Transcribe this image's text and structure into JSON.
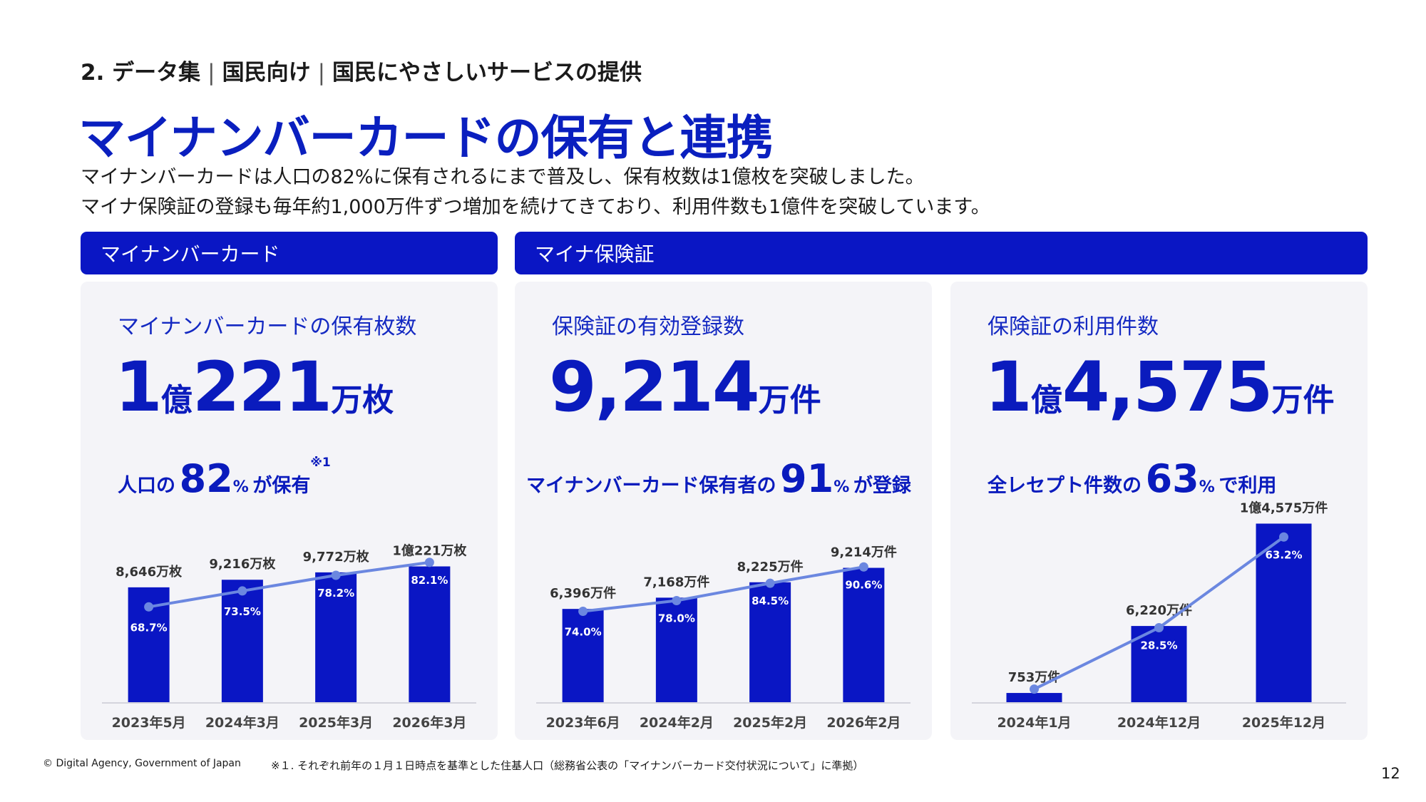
{
  "breadcrumb": {
    "part1": "2. データ集",
    "part2": "国民向け",
    "part3": "国民にやさしいサービスの提供",
    "separator": "|"
  },
  "title": "マイナンバーカードの保有と連携",
  "lead": {
    "line1": "マイナンバーカードは人口の82%に保有されるにまで普及し、保有枚数は1億枚を突破しました。",
    "line2": "マイナ保険証の登録も毎年約1,000万件ずつ増加を続けてきており、利用件数も1億件を突破しています。"
  },
  "sections": {
    "card": "マイナンバーカード",
    "insurance": "マイナ保険証"
  },
  "cards": [
    {
      "title": "マイナンバーカードの保有枚数",
      "big": {
        "n1": "1",
        "u1": "億",
        "n2": "221",
        "u2": "万枚"
      },
      "ratio": {
        "pre": "人口の",
        "pct": "82",
        "pct_unit": "%",
        "post": "が保有",
        "note": "※1"
      }
    },
    {
      "title": "保険証の有効登録数",
      "big": {
        "n1": "9,214",
        "u1": "万件",
        "n2": "",
        "u2": ""
      },
      "ratio": {
        "pre": "マイナンバーカード保有者の",
        "pct": "91",
        "pct_unit": "%",
        "post": "が登録",
        "note": ""
      }
    },
    {
      "title": "保険証の利用件数",
      "big": {
        "n1": "1",
        "u1": "億",
        "n2": "4,575",
        "u2": "万件"
      },
      "ratio": {
        "pre": "全レセプト件数の",
        "pct": "63",
        "pct_unit": "%",
        "post": "で利用",
        "note": ""
      }
    }
  ],
  "chart_data": [
    {
      "type": "bar",
      "categories": [
        "2023年5月",
        "2024年3月",
        "2025年3月",
        "2026年3月"
      ],
      "values": [
        8646,
        9216,
        9772,
        10221
      ],
      "value_labels": [
        "8,646万枚",
        "9,216万枚",
        "9,772万枚",
        "1億221万枚"
      ],
      "unit": "万枚",
      "ylim": [
        0,
        11000
      ],
      "line": {
        "values": [
          68.7,
          73.5,
          78.2,
          82.1
        ],
        "labels": [
          "68.7%",
          "73.5%",
          "78.2%",
          "82.1%"
        ],
        "ylim": [
          40,
          84
        ]
      }
    },
    {
      "type": "bar",
      "categories": [
        "2023年6月",
        "2024年2月",
        "2025年2月",
        "2026年2月"
      ],
      "values": [
        6396,
        7168,
        8225,
        9214
      ],
      "value_labels": [
        "6,396万件",
        "7,168万件",
        "8,225万件",
        "9,214万件"
      ],
      "unit": "万件",
      "ylim": [
        0,
        11000
      ],
      "line": {
        "values": [
          74.0,
          78.0,
          84.5,
          90.6
        ],
        "labels": [
          "74.0%",
          "78.0%",
          "84.5%",
          "90.6%"
        ],
        "ylim": [
          40,
          100
        ]
      }
    },
    {
      "type": "bar",
      "categories": [
        "2024年1月",
        "2024年12月",
        "2025年12月"
      ],
      "values": [
        753,
        6220,
        14575
      ],
      "value_labels": [
        "753万件",
        "6,220万件",
        "1億4,575万件"
      ],
      "unit": "万件",
      "ylim": [
        0,
        16000
      ],
      "line": {
        "values": [
          5.0,
          28.5,
          63.2
        ],
        "labels": [
          "",
          "28.5%",
          "63.2%"
        ],
        "ylim": [
          0,
          75
        ]
      }
    }
  ],
  "footer": {
    "copyright": "© Digital Agency, Government of Japan",
    "note": "※１. それぞれ前年の１月１日時点を基準とした住基人口（総務省公表の「マイナンバーカード交付状況について」に準拠）",
    "page": "12"
  },
  "colors": {
    "brand": "#0a16c4",
    "bar": "#0a16c4",
    "line": "#6b87e0",
    "card_bg": "#f4f4f8"
  }
}
